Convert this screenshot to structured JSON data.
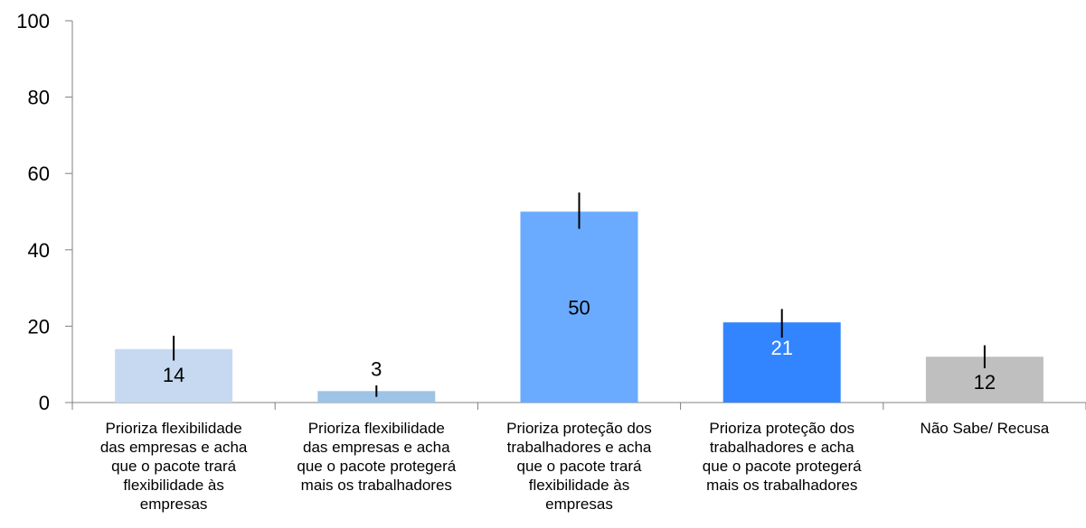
{
  "chart_data": {
    "type": "bar",
    "title": "",
    "xlabel": "",
    "ylabel": "",
    "ylim": [
      0,
      100
    ],
    "yticks": [
      0,
      20,
      40,
      60,
      80,
      100
    ],
    "grid": false,
    "categories": [
      [
        "Prioriza flexibilidade",
        "das empresas e acha",
        "que o pacote trará",
        "flexibilidade às",
        "empresas"
      ],
      [
        "Prioriza flexibilidade",
        "das empresas e acha",
        "que o pacote protegerá",
        "mais os trabalhadores"
      ],
      [
        "Prioriza proteção dos",
        "trabalhadores e acha",
        "que o pacote trará",
        "flexibilidade às",
        "empresas"
      ],
      [
        "Prioriza proteção dos",
        "trabalhadores e acha",
        "que o pacote protegerá",
        "mais os trabalhadores"
      ],
      [
        "Não Sabe/ Recusa"
      ]
    ],
    "values": [
      14,
      3,
      50,
      21,
      12
    ],
    "value_labels": [
      "14",
      "3",
      "50",
      "21",
      "12"
    ],
    "error_bars": [
      [
        11,
        17.5
      ],
      [
        1.5,
        4.5
      ],
      [
        45.5,
        55
      ],
      [
        17,
        24.5
      ],
      [
        9,
        15
      ]
    ],
    "colors": [
      "#c6d9f1",
      "#9dc3e6",
      "#6aabff",
      "#3385ff",
      "#bfbfbf"
    ],
    "label_colors": [
      "#000000",
      "#000000",
      "#000000",
      "#ffffff",
      "#000000"
    ]
  }
}
